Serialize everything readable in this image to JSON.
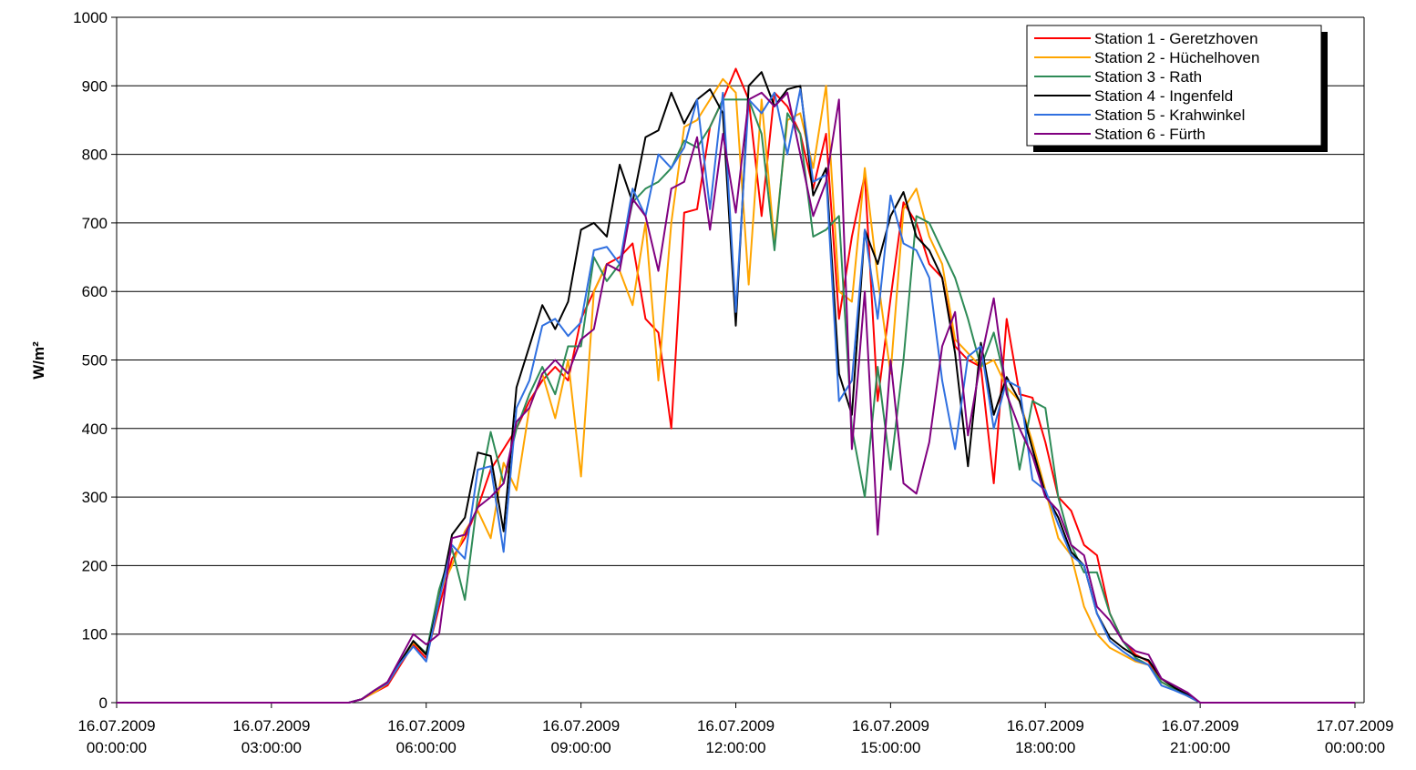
{
  "chart_data": {
    "type": "line",
    "y_label": "W/m²",
    "ylim": [
      0,
      1000
    ],
    "yticks": [
      0,
      100,
      200,
      300,
      400,
      500,
      600,
      700,
      800,
      900,
      1000
    ],
    "xlim": [
      "16.07.2009 00:00:00",
      "17.07.2009 00:00:00"
    ],
    "xticks": [
      "16.07.2009 00:00:00",
      "16.07.2009 03:00:00",
      "16.07.2009 06:00:00",
      "16.07.2009 09:00:00",
      "16.07.2009 12:00:00",
      "16.07.2009 15:00:00",
      "16.07.2009 18:00:00",
      "16.07.2009 21:00:00",
      "17.07.2009 00:00:00"
    ],
    "grid": true,
    "legend": "top-right",
    "x": [
      "16.07.2009 00:00:00",
      "16.07.2009 04:30:00",
      "16.07.2009 04:45:00",
      "16.07.2009 05:00:00",
      "16.07.2009 05:15:00",
      "16.07.2009 05:30:00",
      "16.07.2009 05:45:00",
      "16.07.2009 06:00:00",
      "16.07.2009 06:15:00",
      "16.07.2009 06:30:00",
      "16.07.2009 06:45:00",
      "16.07.2009 07:00:00",
      "16.07.2009 07:15:00",
      "16.07.2009 07:30:00",
      "16.07.2009 07:45:00",
      "16.07.2009 08:00:00",
      "16.07.2009 08:15:00",
      "16.07.2009 08:30:00",
      "16.07.2009 08:45:00",
      "16.07.2009 09:00:00",
      "16.07.2009 09:15:00",
      "16.07.2009 09:30:00",
      "16.07.2009 09:45:00",
      "16.07.2009 10:00:00",
      "16.07.2009 10:15:00",
      "16.07.2009 10:30:00",
      "16.07.2009 10:45:00",
      "16.07.2009 11:00:00",
      "16.07.2009 11:15:00",
      "16.07.2009 11:30:00",
      "16.07.2009 11:45:00",
      "16.07.2009 12:00:00",
      "16.07.2009 12:15:00",
      "16.07.2009 12:30:00",
      "16.07.2009 12:45:00",
      "16.07.2009 13:00:00",
      "16.07.2009 13:15:00",
      "16.07.2009 13:30:00",
      "16.07.2009 13:45:00",
      "16.07.2009 14:00:00",
      "16.07.2009 14:15:00",
      "16.07.2009 14:30:00",
      "16.07.2009 14:45:00",
      "16.07.2009 15:00:00",
      "16.07.2009 15:15:00",
      "16.07.2009 15:30:00",
      "16.07.2009 15:45:00",
      "16.07.2009 16:00:00",
      "16.07.2009 16:15:00",
      "16.07.2009 16:30:00",
      "16.07.2009 16:45:00",
      "16.07.2009 17:00:00",
      "16.07.2009 17:15:00",
      "16.07.2009 17:30:00",
      "16.07.2009 17:45:00",
      "16.07.2009 18:00:00",
      "16.07.2009 18:15:00",
      "16.07.2009 18:30:00",
      "16.07.2009 18:45:00",
      "16.07.2009 19:00:00",
      "16.07.2009 19:15:00",
      "16.07.2009 19:30:00",
      "16.07.2009 19:45:00",
      "16.07.2009 20:00:00",
      "16.07.2009 20:15:00",
      "16.07.2009 20:30:00",
      "16.07.2009 20:45:00",
      "16.07.2009 21:00:00",
      "17.07.2009 00:00:00"
    ],
    "series": [
      {
        "name": "Station 1 - Geretzhoven",
        "color": "#ff0000",
        "values": [
          0,
          0,
          5,
          15,
          25,
          55,
          85,
          65,
          140,
          210,
          240,
          285,
          340,
          370,
          400,
          440,
          470,
          490,
          470,
          560,
          600,
          640,
          650,
          670,
          560,
          540,
          400,
          715,
          720,
          840,
          880,
          925,
          880,
          710,
          890,
          870,
          830,
          750,
          830,
          560,
          680,
          770,
          440,
          590,
          730,
          700,
          640,
          620,
          520,
          500,
          490,
          320,
          560,
          450,
          445,
          380,
          300,
          280,
          230,
          215,
          130,
          90,
          70,
          60,
          30,
          20,
          10,
          0,
          0
        ]
      },
      {
        "name": "Station 2 - Hüchelhoven",
        "color": "#ffa500",
        "values": [
          0,
          0,
          5,
          15,
          28,
          58,
          88,
          70,
          160,
          200,
          250,
          280,
          240,
          350,
          310,
          430,
          480,
          415,
          500,
          330,
          600,
          640,
          630,
          580,
          700,
          470,
          700,
          840,
          850,
          880,
          910,
          890,
          610,
          880,
          670,
          850,
          860,
          780,
          900,
          600,
          585,
          780,
          620,
          480,
          720,
          750,
          680,
          640,
          530,
          510,
          490,
          500,
          460,
          440,
          380,
          310,
          240,
          215,
          140,
          100,
          80,
          70,
          60,
          55,
          30,
          20,
          10,
          0,
          0
        ]
      },
      {
        "name": "Station 3 - Rath",
        "color": "#2e8b57",
        "values": [
          0,
          0,
          5,
          18,
          28,
          58,
          90,
          72,
          165,
          225,
          150,
          300,
          395,
          320,
          400,
          450,
          490,
          450,
          520,
          520,
          650,
          615,
          640,
          730,
          750,
          760,
          780,
          820,
          810,
          840,
          880,
          880,
          880,
          830,
          660,
          860,
          830,
          680,
          690,
          710,
          400,
          300,
          490,
          340,
          500,
          710,
          700,
          660,
          620,
          560,
          490,
          540,
          460,
          340,
          440,
          430,
          300,
          230,
          190,
          190,
          130,
          90,
          65,
          55,
          30,
          20,
          10,
          0,
          0
        ]
      },
      {
        "name": "Station 4 - Ingenfeld",
        "color": "#000000",
        "values": [
          0,
          0,
          5,
          18,
          30,
          60,
          90,
          70,
          150,
          245,
          270,
          365,
          360,
          250,
          460,
          520,
          580,
          545,
          585,
          690,
          700,
          680,
          785,
          730,
          825,
          835,
          890,
          845,
          880,
          895,
          860,
          550,
          900,
          920,
          870,
          895,
          900,
          740,
          780,
          480,
          420,
          690,
          640,
          710,
          745,
          680,
          660,
          620,
          510,
          345,
          525,
          420,
          475,
          440,
          370,
          305,
          270,
          220,
          200,
          130,
          95,
          80,
          68,
          62,
          35,
          22,
          12,
          0,
          0
        ]
      },
      {
        "name": "Station 5 - Krahwinkel",
        "color": "#3070e0",
        "values": [
          0,
          0,
          5,
          18,
          28,
          58,
          82,
          60,
          150,
          230,
          210,
          340,
          345,
          220,
          430,
          470,
          550,
          560,
          535,
          555,
          660,
          665,
          640,
          750,
          710,
          800,
          780,
          810,
          880,
          720,
          890,
          570,
          880,
          860,
          890,
          800,
          895,
          760,
          770,
          440,
          470,
          690,
          560,
          740,
          670,
          660,
          620,
          470,
          370,
          505,
          520,
          400,
          470,
          460,
          325,
          310,
          260,
          215,
          200,
          130,
          90,
          75,
          62,
          55,
          25,
          18,
          10,
          0,
          0
        ]
      },
      {
        "name": "Station 6 - Fürth",
        "color": "#800080",
        "values": [
          0,
          0,
          5,
          18,
          30,
          65,
          100,
          85,
          100,
          240,
          245,
          285,
          300,
          320,
          410,
          430,
          480,
          500,
          480,
          530,
          545,
          640,
          630,
          735,
          710,
          630,
          750,
          760,
          825,
          690,
          830,
          715,
          880,
          890,
          870,
          890,
          800,
          710,
          760,
          880,
          370,
          600,
          245,
          500,
          320,
          305,
          380,
          520,
          570,
          390,
          500,
          590,
          450,
          400,
          360,
          300,
          280,
          230,
          215,
          140,
          120,
          90,
          75,
          70,
          35,
          25,
          15,
          0,
          0
        ]
      }
    ]
  }
}
